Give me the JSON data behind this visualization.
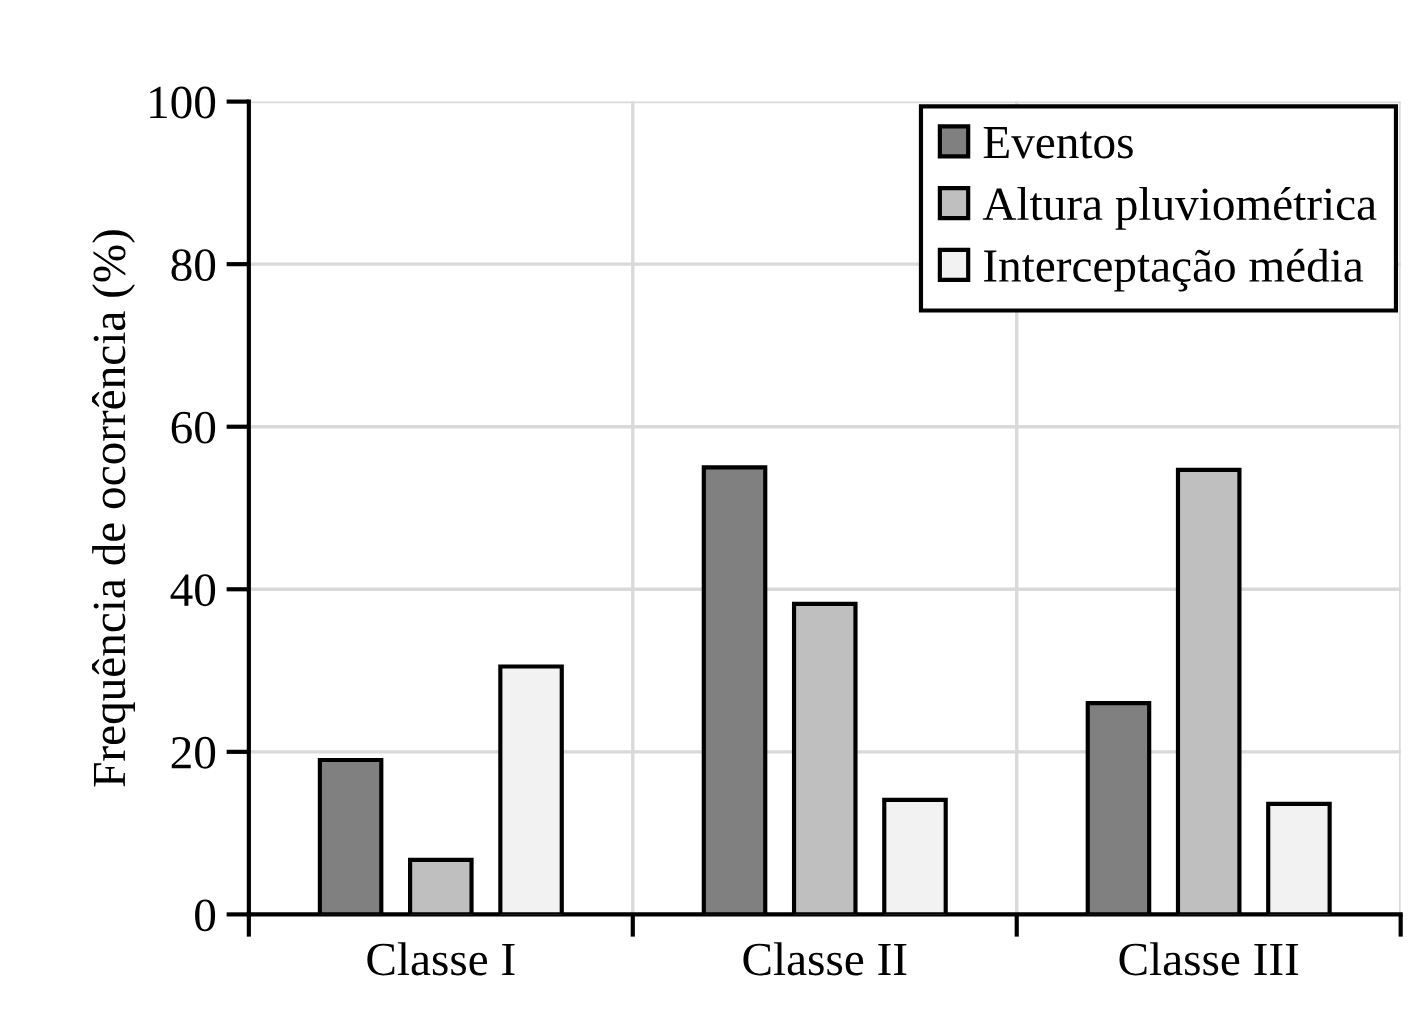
{
  "chart_data": {
    "type": "bar",
    "ylabel": "Frequência de ocorrência (%)",
    "categories": [
      "Classe I",
      "Classe II",
      "Classe III"
    ],
    "series": [
      {
        "name": "Eventos",
        "color": "#808080",
        "values": [
          19,
          55,
          26
        ]
      },
      {
        "name": "Altura pluviométrica",
        "color": "#bfbfbf",
        "values": [
          6.7,
          38.2,
          54.7
        ]
      },
      {
        "name": "Interceptação média",
        "color": "#f2f2f2",
        "values": [
          30.5,
          14.1,
          13.6
        ]
      }
    ],
    "ylim": [
      0,
      100
    ],
    "yticks": [
      0,
      20,
      40,
      60,
      80,
      100
    ],
    "grid": true,
    "legend": "top right"
  }
}
